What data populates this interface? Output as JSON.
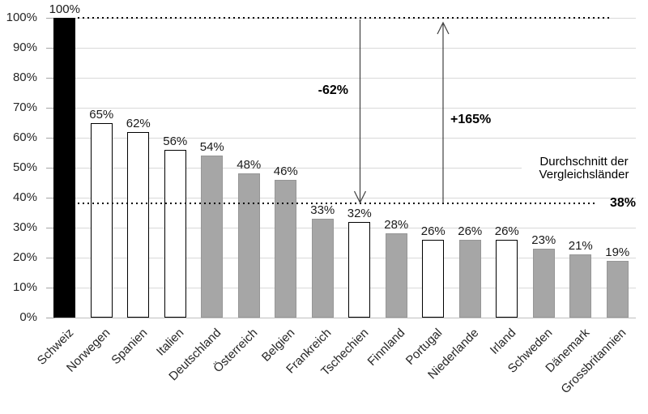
{
  "chart_data": {
    "type": "bar",
    "title": "",
    "xlabel": "",
    "ylabel": "",
    "ylim": [
      0,
      100
    ],
    "grid": true,
    "legend": false,
    "categories": [
      "Schweiz",
      "Norwegen",
      "Spanien",
      "Italien",
      "Deutschland",
      "Österreich",
      "Belgien",
      "Frankreich",
      "Tschechien",
      "Finnland",
      "Portugal",
      "Niederlande",
      "Irland",
      "Schweden",
      "Dänemark",
      "Grossbritannien"
    ],
    "values": [
      100,
      65,
      62,
      56,
      54,
      48,
      46,
      33,
      32,
      28,
      26,
      26,
      26,
      23,
      21,
      19
    ],
    "value_labels": [
      "100%",
      "65%",
      "62%",
      "56%",
      "54%",
      "48%",
      "46%",
      "33%",
      "32%",
      "28%",
      "26%",
      "26%",
      "26%",
      "23%",
      "21%",
      "19%"
    ],
    "bar_fills": [
      "black",
      "white",
      "white",
      "white",
      "gray",
      "gray",
      "gray",
      "gray",
      "white",
      "gray",
      "white",
      "gray",
      "white",
      "gray",
      "gray",
      "gray"
    ],
    "y_ticks": [
      "0%",
      "10%",
      "20%",
      "30%",
      "40%",
      "50%",
      "60%",
      "70%",
      "80%",
      "90%",
      "100%"
    ],
    "reference_lines": [
      {
        "value": 100,
        "style": "dotted"
      },
      {
        "value": 38,
        "style": "dotted",
        "label": "38%"
      }
    ],
    "annotations": {
      "decrease_label": "-62%",
      "increase_label": "+165%",
      "average_caption_line1": "Durchschnitt der",
      "average_caption_line2": "Vergleichsländer",
      "average_value_label": "38%"
    },
    "colors": {
      "black_bar": "#000000",
      "white_bar_fill": "#ffffff",
      "white_bar_border": "#000000",
      "gray_bar": "#a6a6a6",
      "gridline": "#d9d9d9",
      "axis_line": "#bfbfbf",
      "dotted_line": "#000000",
      "arrow": "#404040"
    }
  }
}
